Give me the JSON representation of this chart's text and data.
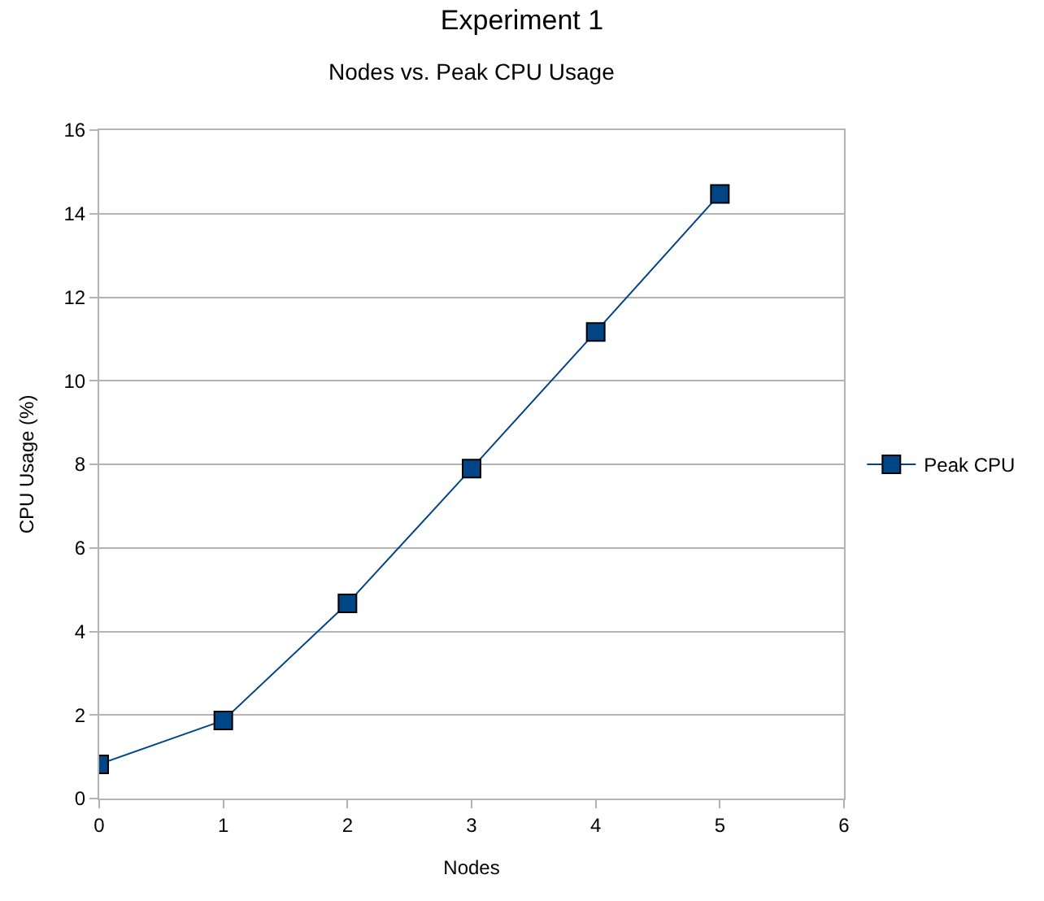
{
  "chart_data": {
    "type": "line",
    "title": "Experiment 1",
    "subtitle": "Nodes vs. Peak CPU Usage",
    "xlabel": "Nodes",
    "ylabel": "CPU Usage (%)",
    "x": [
      0,
      1,
      2,
      3,
      4,
      5
    ],
    "series": [
      {
        "name": "Peak CPU",
        "color": "#004586",
        "values": [
          0.82,
          1.87,
          4.67,
          7.9,
          11.17,
          14.47
        ]
      }
    ],
    "xlim": [
      0,
      6
    ],
    "xticks": [
      0,
      1,
      2,
      3,
      4,
      5,
      6
    ],
    "ylim": [
      0,
      16
    ],
    "yticks": [
      0,
      2,
      4,
      6,
      8,
      10,
      12,
      14,
      16
    ],
    "grid": "y",
    "legend": "right",
    "marker": "square",
    "line_style": "solid"
  }
}
